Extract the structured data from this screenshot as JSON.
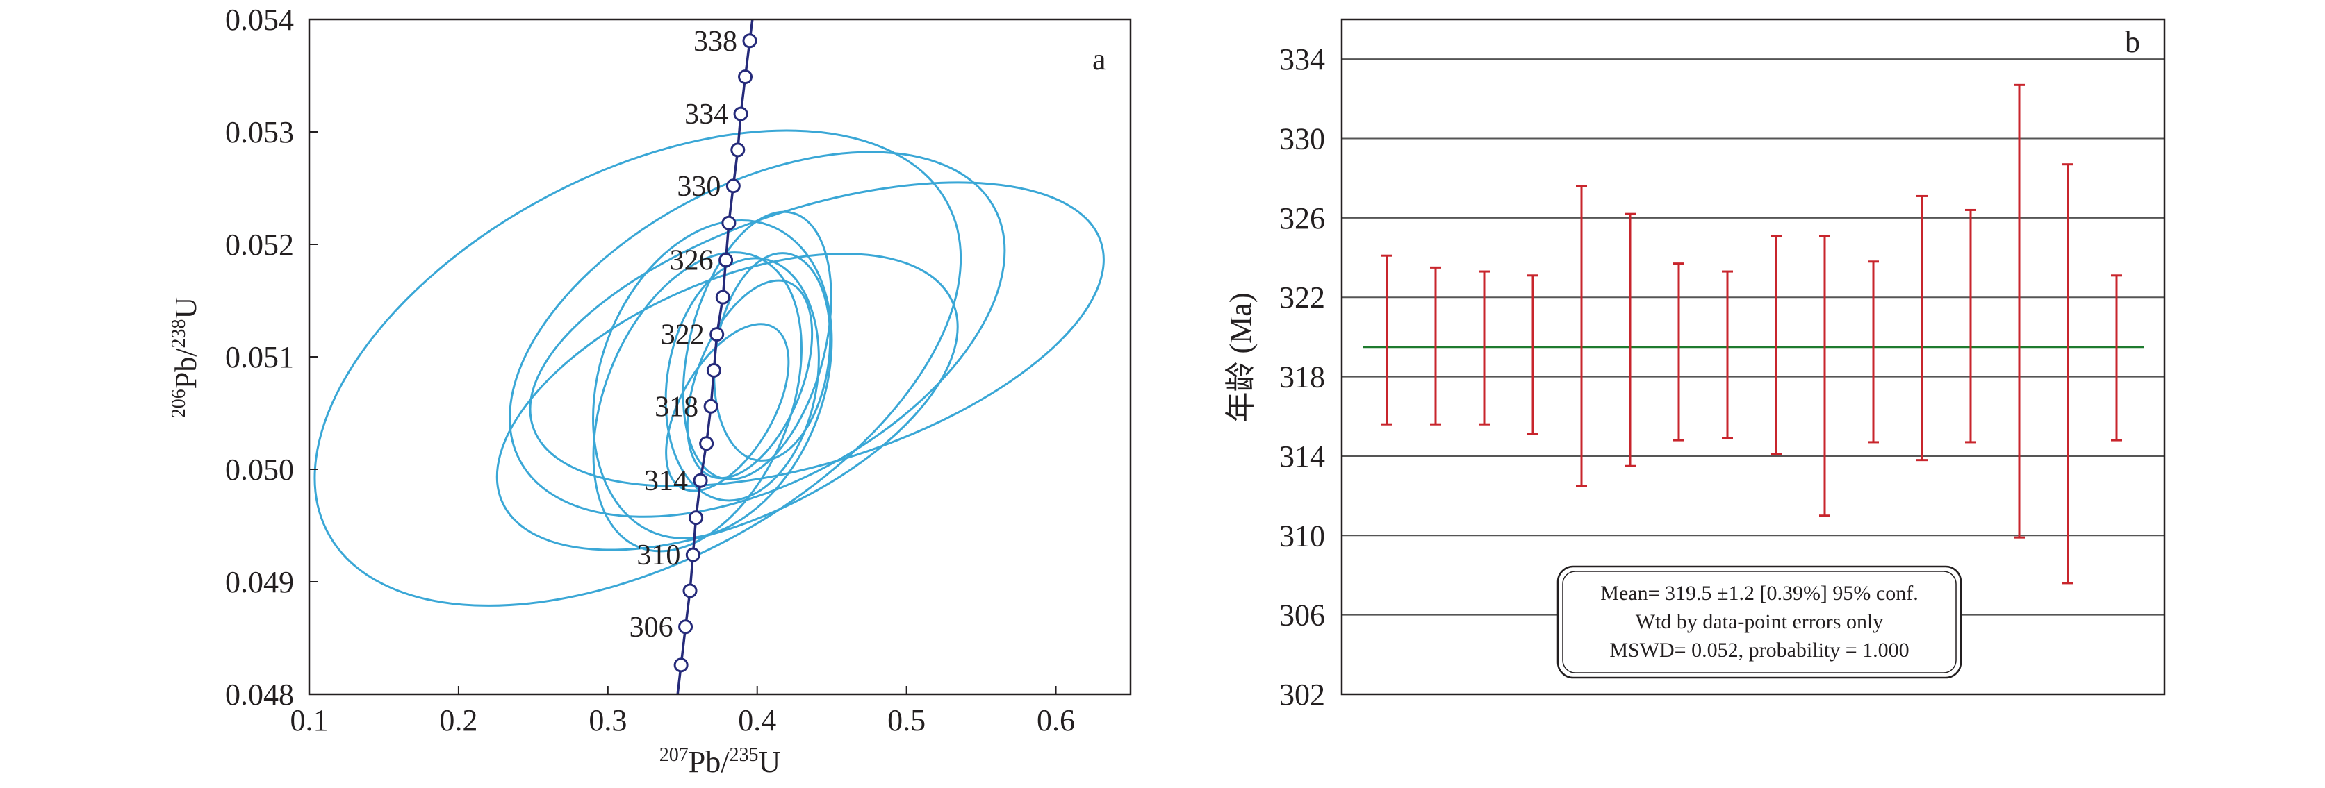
{
  "chart_data": [
    {
      "type": "scatter",
      "panel_label": "a",
      "xlabel": {
        "sup_num": "207",
        "base_num": "Pb/",
        "sup_den": "235",
        "base_den": "U"
      },
      "ylabel": {
        "sup_num": "206",
        "base_num": "Pb/",
        "sup_den": "238",
        "base_den": "U"
      },
      "xlim": [
        0.1,
        0.65
      ],
      "ylim": [
        0.048,
        0.054
      ],
      "xticks": [
        "0.1",
        "0.2",
        "0.3",
        "0.4",
        "0.5",
        "0.6"
      ],
      "yticks": [
        "0.048",
        "0.049",
        "0.050",
        "0.051",
        "0.052",
        "0.053",
        "0.054"
      ],
      "colors": {
        "ellipse": "#3aa7d6",
        "concordia": "#252a7a",
        "frame": "#231f20"
      },
      "concordia": {
        "markers": [
          {
            "age": 304,
            "x": 0.349,
            "y": 0.04826
          },
          {
            "age": 306,
            "x": 0.352,
            "y": 0.0486
          },
          {
            "age": 308,
            "x": 0.355,
            "y": 0.04892
          },
          {
            "age": 310,
            "x": 0.357,
            "y": 0.04924
          },
          {
            "age": 312,
            "x": 0.359,
            "y": 0.04957
          },
          {
            "age": 314,
            "x": 0.362,
            "y": 0.0499
          },
          {
            "age": 316,
            "x": 0.366,
            "y": 0.05023
          },
          {
            "age": 318,
            "x": 0.369,
            "y": 0.05056
          },
          {
            "age": 320,
            "x": 0.371,
            "y": 0.05088
          },
          {
            "age": 322,
            "x": 0.373,
            "y": 0.0512
          },
          {
            "age": 324,
            "x": 0.377,
            "y": 0.05153
          },
          {
            "age": 326,
            "x": 0.379,
            "y": 0.05186
          },
          {
            "age": 328,
            "x": 0.381,
            "y": 0.05219
          },
          {
            "age": 330,
            "x": 0.384,
            "y": 0.05252
          },
          {
            "age": 332,
            "x": 0.387,
            "y": 0.05284
          },
          {
            "age": 334,
            "x": 0.389,
            "y": 0.05316
          },
          {
            "age": 336,
            "x": 0.392,
            "y": 0.05349
          },
          {
            "age": 338,
            "x": 0.395,
            "y": 0.05381
          }
        ],
        "labeled_ages": [
          306,
          310,
          314,
          318,
          322,
          326,
          330,
          334,
          338
        ]
      },
      "ellipses": [
        {
          "cx": 0.32,
          "cy": 0.0509,
          "a": 0.235,
          "b": 0.13,
          "angle_deg": 28
        },
        {
          "cx": 0.4,
          "cy": 0.0512,
          "a": 0.18,
          "b": 0.1,
          "angle_deg": 28
        },
        {
          "cx": 0.44,
          "cy": 0.0512,
          "a": 0.2,
          "b": 0.085,
          "angle_deg": 18
        },
        {
          "cx": 0.38,
          "cy": 0.0506,
          "a": 0.165,
          "b": 0.08,
          "angle_deg": 24
        },
        {
          "cx": 0.37,
          "cy": 0.0508,
          "a": 0.11,
          "b": 0.075,
          "angle_deg": 70
        },
        {
          "cx": 0.36,
          "cy": 0.0506,
          "a": 0.105,
          "b": 0.062,
          "angle_deg": 68
        },
        {
          "cx": 0.4,
          "cy": 0.0511,
          "a": 0.092,
          "b": 0.045,
          "angle_deg": 75
        },
        {
          "cx": 0.39,
          "cy": 0.0508,
          "a": 0.082,
          "b": 0.05,
          "angle_deg": 80
        },
        {
          "cx": 0.41,
          "cy": 0.051,
          "a": 0.07,
          "b": 0.038,
          "angle_deg": 82
        },
        {
          "cx": 0.395,
          "cy": 0.0508,
          "a": 0.07,
          "b": 0.035,
          "angle_deg": 68
        },
        {
          "cx": 0.38,
          "cy": 0.05055,
          "a": 0.062,
          "b": 0.031,
          "angle_deg": 60
        }
      ]
    },
    {
      "type": "errorbar",
      "panel_label": "b",
      "ylabel": "年龄 (Ma)",
      "ylim": [
        302,
        336
      ],
      "yticks": [
        302,
        306,
        310,
        314,
        318,
        322,
        326,
        330,
        334
      ],
      "mean": 319.5,
      "colors": {
        "bar": "#c8252c",
        "mean_line": "#1e7a2e",
        "grid": "#555555",
        "frame": "#231f20"
      },
      "bars": [
        {
          "low": 315.6,
          "high": 324.1
        },
        {
          "low": 315.6,
          "high": 323.5
        },
        {
          "low": 315.6,
          "high": 323.3
        },
        {
          "low": 315.1,
          "high": 323.1
        },
        {
          "low": 312.5,
          "high": 327.6
        },
        {
          "low": 313.5,
          "high": 326.2
        },
        {
          "low": 314.8,
          "high": 323.7
        },
        {
          "low": 314.9,
          "high": 323.3
        },
        {
          "low": 314.1,
          "high": 325.1
        },
        {
          "low": 311.0,
          "high": 325.1
        },
        {
          "low": 314.7,
          "high": 323.8
        },
        {
          "low": 313.8,
          "high": 327.1
        },
        {
          "low": 314.7,
          "high": 326.4
        },
        {
          "low": 309.9,
          "high": 332.7
        },
        {
          "low": 307.6,
          "high": 328.7
        },
        {
          "low": 314.8,
          "high": 323.1
        }
      ],
      "stats_box": {
        "line1": "Mean= 319.5 ±1.2  [0.39%]  95% conf.",
        "line2": "Wtd by data-point errors only",
        "line3": "MSWD= 0.052, probability = 1.000"
      }
    }
  ]
}
